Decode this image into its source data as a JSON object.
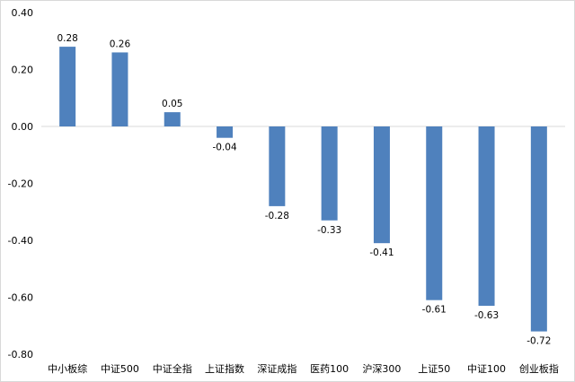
{
  "chart_data": {
    "type": "bar",
    "categories": [
      "中小板综",
      "中证500",
      "中证全指",
      "上证指数",
      "深证成指",
      "医药100",
      "沪深300",
      "上证50",
      "中证100",
      "创业板指"
    ],
    "values": [
      0.28,
      0.26,
      0.05,
      -0.04,
      -0.28,
      -0.33,
      -0.41,
      -0.61,
      -0.63,
      -0.72
    ],
    "data_labels": [
      "0.28",
      "0.26",
      "0.05",
      "-0.04",
      "-0.28",
      "-0.33",
      "-0.41",
      "-0.61",
      "-0.63",
      "-0.72"
    ],
    "y_ticks": [
      "0.40",
      "0.20",
      "0.00",
      "-0.20",
      "-0.40",
      "-0.60",
      "-0.80"
    ],
    "y_tick_values": [
      0.4,
      0.2,
      0.0,
      -0.2,
      -0.4,
      -0.6,
      -0.8
    ],
    "ylim": [
      -0.8,
      0.4
    ],
    "grid": false,
    "legend": "none",
    "bar_color": "#4f81bd",
    "axis_color": "#d9d9d9"
  }
}
